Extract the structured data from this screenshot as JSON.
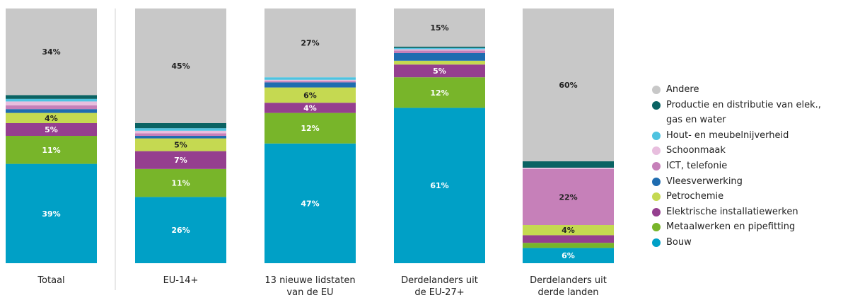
{
  "chart_data": {
    "type": "stacked_bar",
    "categories": [
      "Totaal",
      "EU-14+",
      "13 nieuwe lidstaten van de EU",
      "Derdelanders uit de EU-27+",
      "Derdelanders uit derde landen"
    ],
    "ylim": [
      0,
      100
    ],
    "series": [
      {
        "name": "Bouw",
        "color": "#00a0c6",
        "values": [
          39,
          26,
          47,
          61,
          6
        ],
        "value_labels": [
          "39%",
          "26%",
          "47%",
          "61%",
          "6%"
        ]
      },
      {
        "name": "Metaalwerken en pipefitting",
        "color": "#78b52a",
        "values": [
          11,
          11,
          12,
          12,
          2
        ],
        "value_labels": [
          "11%",
          "11%",
          "12%",
          "12%",
          null
        ]
      },
      {
        "name": "Elektrische installatiewerken",
        "color": "#953f8f",
        "values": [
          5,
          7,
          4,
          5,
          3
        ],
        "value_labels": [
          "5%",
          "7%",
          "4%",
          "5%",
          null
        ]
      },
      {
        "name": "Petrochemie",
        "color": "#c5d951",
        "values": [
          4,
          5,
          6,
          1.5,
          4
        ],
        "value_labels": [
          "4%",
          "5%",
          "6%",
          null,
          "4%"
        ]
      },
      {
        "name": "Vleesverwerking",
        "color": "#1f6cb0",
        "values": [
          1.5,
          1,
          2,
          3,
          0
        ],
        "value_labels": [
          null,
          null,
          null,
          null,
          null
        ]
      },
      {
        "name": "ICT, telefonie",
        "color": "#c680b9",
        "values": [
          1.5,
          1,
          0.5,
          1,
          22
        ],
        "value_labels": [
          null,
          null,
          null,
          null,
          "22%"
        ]
      },
      {
        "name": "Schoonmaak",
        "color": "#e8bede",
        "values": [
          1.5,
          1,
          0.5,
          0.5,
          0.5
        ],
        "value_labels": [
          null,
          null,
          null,
          null,
          null
        ]
      },
      {
        "name": "Hout- en meubelnijverheid",
        "color": "#4fc3e0",
        "values": [
          1,
          1,
          1,
          0.5,
          0
        ],
        "value_labels": [
          null,
          null,
          null,
          null,
          null
        ]
      },
      {
        "name": "Productie en distributie van elek., gas en water",
        "color": "#0a6363",
        "values": [
          1.5,
          2,
          0,
          0.5,
          2.5
        ],
        "value_labels": [
          null,
          null,
          null,
          null,
          null
        ]
      },
      {
        "name": "Andere",
        "color": "#c8c8c8",
        "values": [
          34,
          45,
          27,
          15,
          60
        ],
        "value_labels": [
          "34%",
          "45%",
          "27%",
          "15%",
          "60%"
        ]
      }
    ]
  }
}
